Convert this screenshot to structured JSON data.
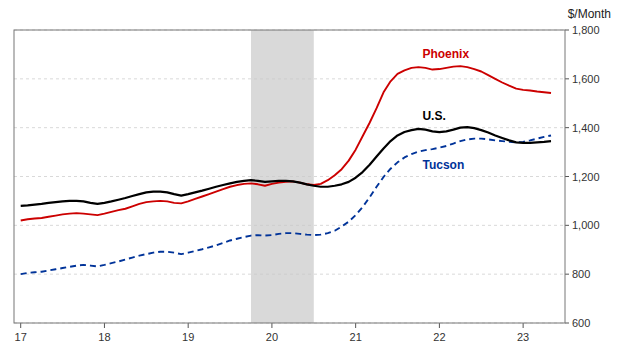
{
  "chart_data": {
    "type": "line",
    "title": "$/Month",
    "x": [
      2017.0,
      2017.083,
      2017.167,
      2017.25,
      2017.333,
      2017.417,
      2017.5,
      2017.583,
      2017.667,
      2017.75,
      2017.833,
      2017.917,
      2018.0,
      2018.083,
      2018.167,
      2018.25,
      2018.333,
      2018.417,
      2018.5,
      2018.583,
      2018.667,
      2018.75,
      2018.833,
      2018.917,
      2019.0,
      2019.083,
      2019.167,
      2019.25,
      2019.333,
      2019.417,
      2019.5,
      2019.583,
      2019.667,
      2019.75,
      2019.833,
      2019.917,
      2020.0,
      2020.083,
      2020.167,
      2020.25,
      2020.333,
      2020.417,
      2020.5,
      2020.583,
      2020.667,
      2020.75,
      2020.833,
      2020.917,
      2021.0,
      2021.083,
      2021.167,
      2021.25,
      2021.333,
      2021.417,
      2021.5,
      2021.583,
      2021.667,
      2021.75,
      2021.833,
      2021.917,
      2022.0,
      2022.083,
      2022.167,
      2022.25,
      2022.333,
      2022.417,
      2022.5,
      2022.583,
      2022.667,
      2022.75,
      2022.833,
      2022.917,
      2023.0,
      2023.083,
      2023.167,
      2023.25,
      2023.333
    ],
    "series": [
      {
        "name": "Phoenix",
        "color": "#cc0000",
        "line_style": "solid",
        "values": [
          1020,
          1025,
          1028,
          1030,
          1035,
          1040,
          1045,
          1048,
          1050,
          1048,
          1045,
          1042,
          1048,
          1055,
          1062,
          1068,
          1078,
          1088,
          1095,
          1098,
          1100,
          1098,
          1092,
          1090,
          1098,
          1108,
          1118,
          1128,
          1138,
          1148,
          1158,
          1165,
          1170,
          1172,
          1168,
          1162,
          1170,
          1175,
          1178,
          1180,
          1175,
          1168,
          1165,
          1170,
          1185,
          1205,
          1230,
          1265,
          1310,
          1365,
          1420,
          1480,
          1545,
          1590,
          1620,
          1635,
          1645,
          1648,
          1645,
          1638,
          1640,
          1645,
          1650,
          1652,
          1648,
          1640,
          1630,
          1615,
          1600,
          1585,
          1572,
          1560,
          1555,
          1552,
          1548,
          1545,
          1542
        ]
      },
      {
        "name": "U.S.",
        "color": "#000000",
        "line_style": "solid",
        "values": [
          1080,
          1082,
          1085,
          1088,
          1092,
          1095,
          1098,
          1100,
          1100,
          1098,
          1092,
          1088,
          1092,
          1098,
          1105,
          1112,
          1120,
          1128,
          1135,
          1138,
          1138,
          1135,
          1128,
          1122,
          1128,
          1135,
          1142,
          1150,
          1158,
          1165,
          1172,
          1178,
          1182,
          1185,
          1182,
          1178,
          1180,
          1182,
          1182,
          1180,
          1175,
          1168,
          1162,
          1158,
          1158,
          1162,
          1168,
          1178,
          1195,
          1218,
          1248,
          1282,
          1315,
          1345,
          1368,
          1382,
          1390,
          1395,
          1392,
          1385,
          1382,
          1385,
          1392,
          1400,
          1402,
          1398,
          1390,
          1380,
          1368,
          1358,
          1348,
          1340,
          1338,
          1338,
          1340,
          1342,
          1345
        ]
      },
      {
        "name": "Tucson",
        "color": "#003399",
        "line_style": "dashed",
        "values": [
          800,
          805,
          808,
          810,
          815,
          820,
          825,
          830,
          835,
          838,
          835,
          832,
          838,
          845,
          852,
          860,
          868,
          876,
          882,
          888,
          892,
          892,
          888,
          882,
          888,
          895,
          902,
          910,
          918,
          928,
          938,
          945,
          952,
          958,
          960,
          958,
          960,
          965,
          968,
          968,
          965,
          962,
          960,
          962,
          968,
          978,
          995,
          1015,
          1042,
          1075,
          1115,
          1158,
          1198,
          1232,
          1258,
          1278,
          1292,
          1302,
          1308,
          1312,
          1318,
          1325,
          1335,
          1345,
          1352,
          1355,
          1355,
          1352,
          1348,
          1345,
          1342,
          1340,
          1342,
          1348,
          1355,
          1362,
          1368
        ]
      }
    ],
    "shade": {
      "start": 2019.75,
      "end": 2020.5,
      "color": "#d9d9d9"
    },
    "xlim": [
      2016.92,
      2023.5
    ],
    "xticks": [
      {
        "value": 2017,
        "label": "17"
      },
      {
        "value": 2018,
        "label": "18"
      },
      {
        "value": 2019,
        "label": "19"
      },
      {
        "value": 2020,
        "label": "20"
      },
      {
        "value": 2021,
        "label": "21"
      },
      {
        "value": 2022,
        "label": "22"
      },
      {
        "value": 2023,
        "label": "23"
      }
    ],
    "ylim": [
      600,
      1800
    ],
    "yticks": [
      600,
      800,
      {
        "value": 1000,
        "label": "1,000"
      },
      {
        "value": 1200,
        "label": "1,200"
      },
      {
        "value": 1400,
        "label": "1,400"
      },
      {
        "value": 1600,
        "label": "1,600"
      },
      {
        "value": 1800,
        "label": "1,800"
      }
    ],
    "grid": true
  }
}
